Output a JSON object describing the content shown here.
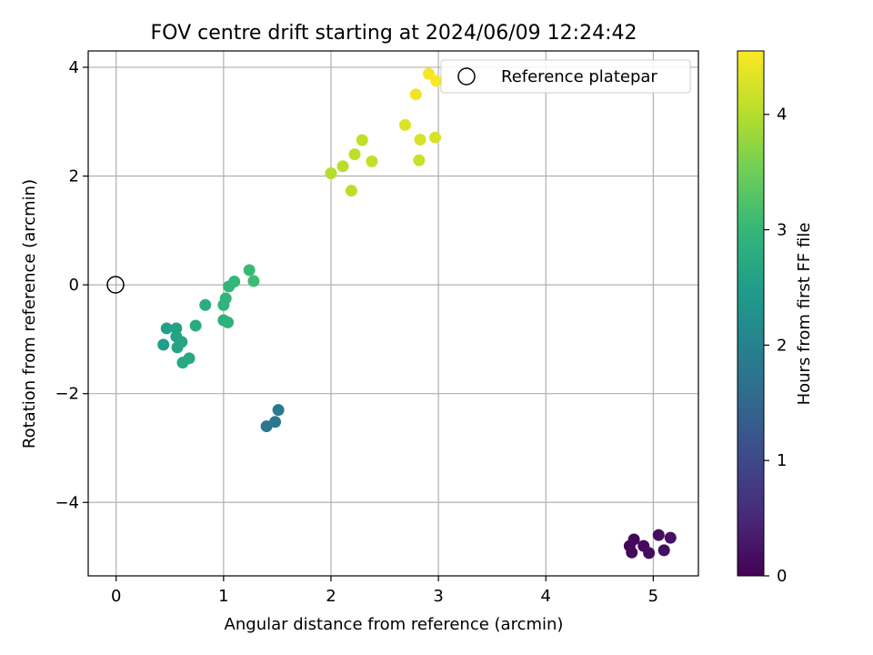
{
  "chart_data": {
    "type": "scatter",
    "title": "FOV centre drift starting at 2024/06/09 12:24:42",
    "xlabel": "Angular distance from reference (arcmin)",
    "ylabel": "Rotation from reference (arcmin)",
    "xlim": [
      -0.26,
      5.42
    ],
    "ylim": [
      -5.35,
      4.3
    ],
    "xticks": [
      0,
      1,
      2,
      3,
      4,
      5
    ],
    "yticks": [
      -4,
      -2,
      0,
      2,
      4
    ],
    "grid": true,
    "legend": {
      "location": "upper-right",
      "entries": [
        {
          "label": "Reference platepar",
          "marker": "open-circle"
        }
      ]
    },
    "reference_point": {
      "x": 0,
      "y": 0
    },
    "colorbar": {
      "label": "Hours from first FF file",
      "colormap": "viridis",
      "range": [
        0,
        4.55
      ],
      "ticks": [
        0,
        1,
        2,
        3,
        4
      ]
    },
    "points": [
      {
        "x": 4.78,
        "y": -4.8,
        "c": 0.05
      },
      {
        "x": 4.82,
        "y": -4.68,
        "c": 0.08
      },
      {
        "x": 4.8,
        "y": -4.92,
        "c": 0.1
      },
      {
        "x": 4.91,
        "y": -4.8,
        "c": 0.12
      },
      {
        "x": 4.96,
        "y": -4.93,
        "c": 0.14
      },
      {
        "x": 5.05,
        "y": -4.6,
        "c": 0.16
      },
      {
        "x": 5.1,
        "y": -4.88,
        "c": 0.18
      },
      {
        "x": 5.16,
        "y": -4.65,
        "c": 0.2
      },
      {
        "x": 1.4,
        "y": -2.6,
        "c": 1.75
      },
      {
        "x": 1.48,
        "y": -2.52,
        "c": 1.8
      },
      {
        "x": 1.51,
        "y": -2.3,
        "c": 1.85
      },
      {
        "x": 0.44,
        "y": -1.1,
        "c": 2.5
      },
      {
        "x": 0.47,
        "y": -0.8,
        "c": 2.55
      },
      {
        "x": 0.56,
        "y": -0.8,
        "c": 2.6
      },
      {
        "x": 0.56,
        "y": -0.95,
        "c": 2.6
      },
      {
        "x": 0.57,
        "y": -1.15,
        "c": 2.62
      },
      {
        "x": 0.61,
        "y": -1.05,
        "c": 2.65
      },
      {
        "x": 0.62,
        "y": -1.43,
        "c": 2.7
      },
      {
        "x": 0.68,
        "y": -1.35,
        "c": 2.72
      },
      {
        "x": 0.74,
        "y": -0.75,
        "c": 2.75
      },
      {
        "x": 0.83,
        "y": -0.37,
        "c": 2.8
      },
      {
        "x": 1.0,
        "y": -0.65,
        "c": 2.85
      },
      {
        "x": 1.04,
        "y": -0.69,
        "c": 2.88
      },
      {
        "x": 1.0,
        "y": -0.37,
        "c": 2.9
      },
      {
        "x": 1.02,
        "y": -0.25,
        "c": 2.92
      },
      {
        "x": 1.05,
        "y": -0.03,
        "c": 2.95
      },
      {
        "x": 1.1,
        "y": 0.06,
        "c": 3.0
      },
      {
        "x": 1.24,
        "y": 0.27,
        "c": 3.05
      },
      {
        "x": 1.28,
        "y": 0.07,
        "c": 3.1
      },
      {
        "x": 2.0,
        "y": 2.05,
        "c": 4.0
      },
      {
        "x": 2.11,
        "y": 2.18,
        "c": 4.02
      },
      {
        "x": 2.19,
        "y": 1.73,
        "c": 4.04
      },
      {
        "x": 2.22,
        "y": 2.4,
        "c": 4.06
      },
      {
        "x": 2.29,
        "y": 2.66,
        "c": 4.08
      },
      {
        "x": 2.38,
        "y": 2.27,
        "c": 4.1
      },
      {
        "x": 2.82,
        "y": 2.29,
        "c": 4.15
      },
      {
        "x": 2.69,
        "y": 2.94,
        "c": 4.3
      },
      {
        "x": 2.83,
        "y": 2.67,
        "c": 4.25
      },
      {
        "x": 2.97,
        "y": 2.71,
        "c": 4.25
      },
      {
        "x": 2.79,
        "y": 3.5,
        "c": 4.45
      },
      {
        "x": 2.91,
        "y": 3.88,
        "c": 4.5
      },
      {
        "x": 2.98,
        "y": 3.75,
        "c": 4.52
      }
    ]
  }
}
